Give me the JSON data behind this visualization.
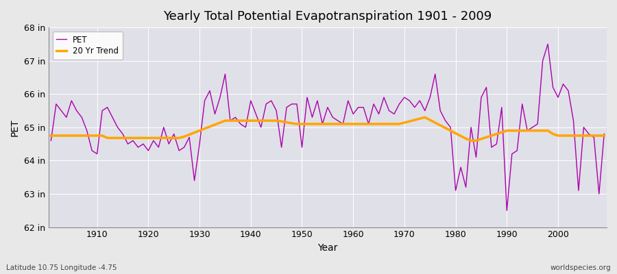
{
  "title": "Yearly Total Potential Evapotranspiration 1901 - 2009",
  "xlabel": "Year",
  "ylabel": "PET",
  "subtitle": "Latitude 10.75 Longitude -4.75",
  "watermark": "worldspecies.org",
  "years": [
    1901,
    1902,
    1903,
    1904,
    1905,
    1906,
    1907,
    1908,
    1909,
    1910,
    1911,
    1912,
    1913,
    1914,
    1915,
    1916,
    1917,
    1918,
    1919,
    1920,
    1921,
    1922,
    1923,
    1924,
    1925,
    1926,
    1927,
    1928,
    1929,
    1930,
    1931,
    1932,
    1933,
    1934,
    1935,
    1936,
    1937,
    1938,
    1939,
    1940,
    1941,
    1942,
    1943,
    1944,
    1945,
    1946,
    1947,
    1948,
    1949,
    1950,
    1951,
    1952,
    1953,
    1954,
    1955,
    1956,
    1957,
    1958,
    1959,
    1960,
    1961,
    1962,
    1963,
    1964,
    1965,
    1966,
    1967,
    1968,
    1969,
    1970,
    1971,
    1972,
    1973,
    1974,
    1975,
    1976,
    1977,
    1978,
    1979,
    1980,
    1981,
    1982,
    1983,
    1984,
    1985,
    1986,
    1987,
    1988,
    1989,
    1990,
    1991,
    1992,
    1993,
    1994,
    1995,
    1996,
    1997,
    1998,
    1999,
    2000,
    2001,
    2002,
    2003,
    2004,
    2005,
    2006,
    2007,
    2008,
    2009
  ],
  "pet": [
    64.6,
    65.7,
    65.5,
    65.3,
    65.8,
    65.5,
    65.3,
    64.9,
    64.3,
    64.2,
    65.5,
    65.6,
    65.3,
    65.0,
    64.8,
    64.5,
    64.6,
    64.4,
    64.5,
    64.3,
    64.6,
    64.4,
    65.0,
    64.5,
    64.8,
    64.3,
    64.4,
    64.7,
    63.4,
    64.5,
    65.8,
    66.1,
    65.4,
    65.9,
    66.6,
    65.2,
    65.3,
    65.1,
    65.0,
    65.8,
    65.4,
    65.0,
    65.7,
    65.8,
    65.5,
    64.4,
    65.6,
    65.7,
    65.7,
    64.4,
    65.9,
    65.3,
    65.8,
    65.1,
    65.6,
    65.3,
    65.2,
    65.1,
    65.8,
    65.4,
    65.6,
    65.6,
    65.1,
    65.7,
    65.4,
    65.9,
    65.5,
    65.4,
    65.7,
    65.9,
    65.8,
    65.6,
    65.8,
    65.5,
    65.9,
    66.6,
    65.5,
    65.2,
    65.0,
    63.1,
    63.8,
    63.2,
    65.0,
    64.1,
    65.9,
    66.2,
    64.4,
    64.5,
    65.6,
    62.5,
    64.2,
    64.3,
    65.7,
    64.9,
    65.0,
    65.1,
    67.0,
    67.5,
    66.2,
    65.9,
    66.3,
    66.1,
    65.2,
    63.1,
    65.0,
    64.8,
    64.7,
    63.0,
    64.8
  ],
  "trend": [
    64.75,
    64.75,
    64.75,
    64.75,
    64.75,
    64.75,
    64.75,
    64.75,
    64.75,
    64.75,
    64.75,
    64.68,
    64.68,
    64.68,
    64.68,
    64.68,
    64.68,
    64.68,
    64.68,
    64.68,
    64.68,
    64.68,
    64.68,
    64.68,
    64.68,
    64.68,
    64.72,
    64.78,
    64.84,
    64.9,
    64.96,
    65.02,
    65.08,
    65.14,
    65.2,
    65.2,
    65.2,
    65.2,
    65.2,
    65.2,
    65.2,
    65.2,
    65.2,
    65.2,
    65.2,
    65.18,
    65.15,
    65.12,
    65.1,
    65.1,
    65.1,
    65.1,
    65.1,
    65.1,
    65.1,
    65.1,
    65.1,
    65.1,
    65.1,
    65.1,
    65.1,
    65.1,
    65.1,
    65.1,
    65.1,
    65.1,
    65.1,
    65.1,
    65.1,
    65.14,
    65.18,
    65.22,
    65.26,
    65.3,
    65.22,
    65.14,
    65.06,
    64.98,
    64.9,
    64.82,
    64.74,
    64.66,
    64.6,
    64.6,
    64.65,
    64.7,
    64.75,
    64.8,
    64.85,
    64.9,
    64.9,
    64.9,
    64.9,
    64.9,
    64.9,
    64.9,
    64.9,
    64.9,
    64.8,
    64.75,
    64.75,
    64.75,
    64.75,
    64.75,
    64.75,
    64.75,
    64.75,
    64.75,
    64.75
  ],
  "pet_color": "#AA00AA",
  "trend_color": "#FFA500",
  "bg_color": "#E8E8E8",
  "plot_bg_color": "#E0E0E8",
  "grid_color": "#FFFFFF",
  "ylim": [
    62,
    68
  ],
  "yticks": [
    62,
    63,
    64,
    65,
    66,
    67,
    68
  ],
  "ytick_labels": [
    "62 in",
    "63 in",
    "64 in",
    "65 in",
    "66 in",
    "67 in",
    "68 in"
  ],
  "xtick_start": 1910,
  "xtick_step": 10,
  "legend_labels": [
    "PET",
    "20 Yr Trend"
  ]
}
